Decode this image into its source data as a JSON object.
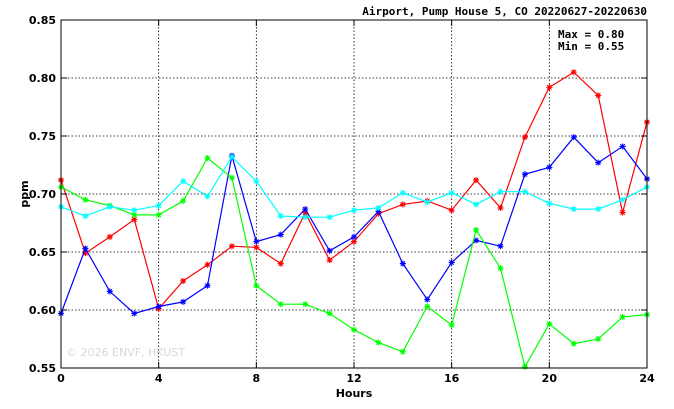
{
  "chart_data": {
    "type": "line",
    "title": "Airport, Pump House 5, CO 20220627-20220630",
    "xlabel": "Hours",
    "ylabel": "ppm",
    "xlim": [
      0,
      24
    ],
    "ylim": [
      0.55,
      0.85
    ],
    "xticks": [
      0,
      4,
      8,
      12,
      16,
      20,
      24
    ],
    "yticks": [
      0.55,
      0.6,
      0.65,
      0.7,
      0.75,
      0.8,
      0.85
    ],
    "xtick_labels": [
      "0",
      "4",
      "8",
      "12",
      "16",
      "20",
      "24"
    ],
    "ytick_labels": [
      "0.55",
      "0.60",
      "0.65",
      "0.70",
      "0.75",
      "0.80",
      "0.85"
    ],
    "grid": true,
    "stats": {
      "max": "Max = 0.80",
      "min": "Min = 0.55"
    },
    "watermark": "© 2026  ENVF, HKUST",
    "series": [
      {
        "color": "#ff0000",
        "x": [
          0,
          1,
          2,
          3,
          4,
          5,
          6,
          7,
          8,
          9,
          10,
          11,
          12,
          13,
          14,
          15,
          16,
          17,
          18,
          19,
          20,
          21,
          22,
          23,
          24
        ],
        "y": [
          0.712,
          0.649,
          0.663,
          0.678,
          0.601,
          0.625,
          0.639,
          0.655,
          0.654,
          0.64,
          0.684,
          0.643,
          0.659,
          0.683,
          0.691,
          0.694,
          0.686,
          0.712,
          0.688,
          0.749,
          0.792,
          0.805,
          0.785,
          0.684,
          0.762
        ]
      },
      {
        "color": "#0000ff",
        "x": [
          0,
          1,
          2,
          3,
          4,
          5,
          6,
          7,
          8,
          9,
          10,
          11,
          12,
          13,
          14,
          15,
          16,
          17,
          18,
          19,
          20,
          21,
          22,
          23,
          24
        ],
        "y": [
          0.597,
          0.653,
          0.616,
          0.597,
          0.603,
          0.607,
          0.621,
          0.733,
          0.659,
          0.665,
          0.687,
          0.651,
          0.663,
          0.685,
          0.64,
          0.609,
          0.641,
          0.66,
          0.655,
          0.717,
          0.723,
          0.749,
          0.727,
          0.741,
          0.713
        ]
      },
      {
        "color": "#00ff00",
        "x": [
          0,
          1,
          2,
          3,
          4,
          5,
          6,
          7,
          8,
          9,
          10,
          11,
          12,
          13,
          14,
          15,
          16,
          17,
          18,
          19,
          20,
          21,
          22,
          23,
          24
        ],
        "y": [
          0.706,
          0.695,
          0.69,
          0.682,
          0.682,
          0.694,
          0.731,
          0.714,
          0.621,
          0.605,
          0.605,
          0.597,
          0.583,
          0.572,
          0.564,
          0.603,
          0.587,
          0.669,
          0.636,
          0.551,
          0.588,
          0.571,
          0.575,
          0.594,
          0.596
        ]
      },
      {
        "color": "#00ffff",
        "x": [
          0,
          1,
          2,
          3,
          4,
          5,
          6,
          7,
          8,
          9,
          10,
          11,
          12,
          13,
          14,
          15,
          16,
          17,
          18,
          19,
          20,
          21,
          22,
          23,
          24
        ],
        "y": [
          0.689,
          0.681,
          0.689,
          0.686,
          0.69,
          0.711,
          0.698,
          0.732,
          0.711,
          0.681,
          0.68,
          0.68,
          0.686,
          0.688,
          0.701,
          0.693,
          0.701,
          0.691,
          0.702,
          0.702,
          0.692,
          0.687,
          0.687,
          0.695,
          0.706
        ]
      }
    ]
  }
}
